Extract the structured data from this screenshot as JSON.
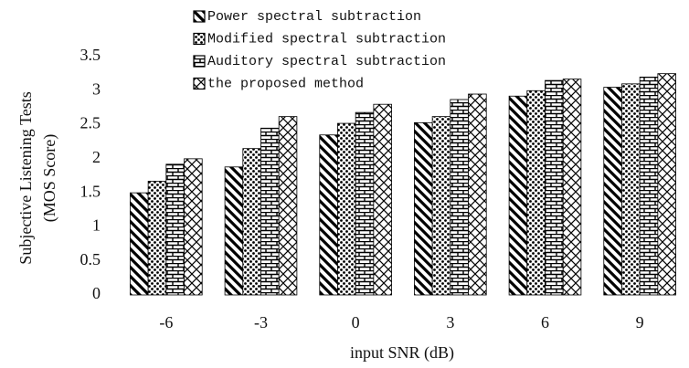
{
  "chart_data": {
    "type": "bar",
    "y_label": [
      "Subjective Listening Tests",
      "(MOS Score)"
    ],
    "x_label": "input SNR (dB)",
    "categories": [
      "-6",
      "-3",
      "0",
      "3",
      "6",
      "9"
    ],
    "series": [
      {
        "name": "Power spectral subtraction",
        "color": "#000000",
        "pattern": "diagonal",
        "values": [
          1.5,
          1.88,
          2.35,
          2.53,
          2.92,
          3.05
        ]
      },
      {
        "name": "Modified spectral subtraction",
        "color": "#000000",
        "pattern": "dots",
        "values": [
          1.67,
          2.15,
          2.52,
          2.62,
          3.0,
          3.1
        ]
      },
      {
        "name": "Auditory spectral subtraction",
        "color": "#000000",
        "pattern": "brick",
        "values": [
          1.92,
          2.45,
          2.68,
          2.87,
          3.15,
          3.2
        ]
      },
      {
        "name": "the proposed method",
        "color": "#000000",
        "pattern": "crosshatch",
        "values": [
          2.0,
          2.62,
          2.8,
          2.95,
          3.17,
          3.25
        ]
      }
    ],
    "ylim": [
      0,
      3.5
    ],
    "yticks": [
      0,
      0.5,
      1,
      1.5,
      2,
      2.5,
      3,
      3.5
    ],
    "grid": false
  }
}
